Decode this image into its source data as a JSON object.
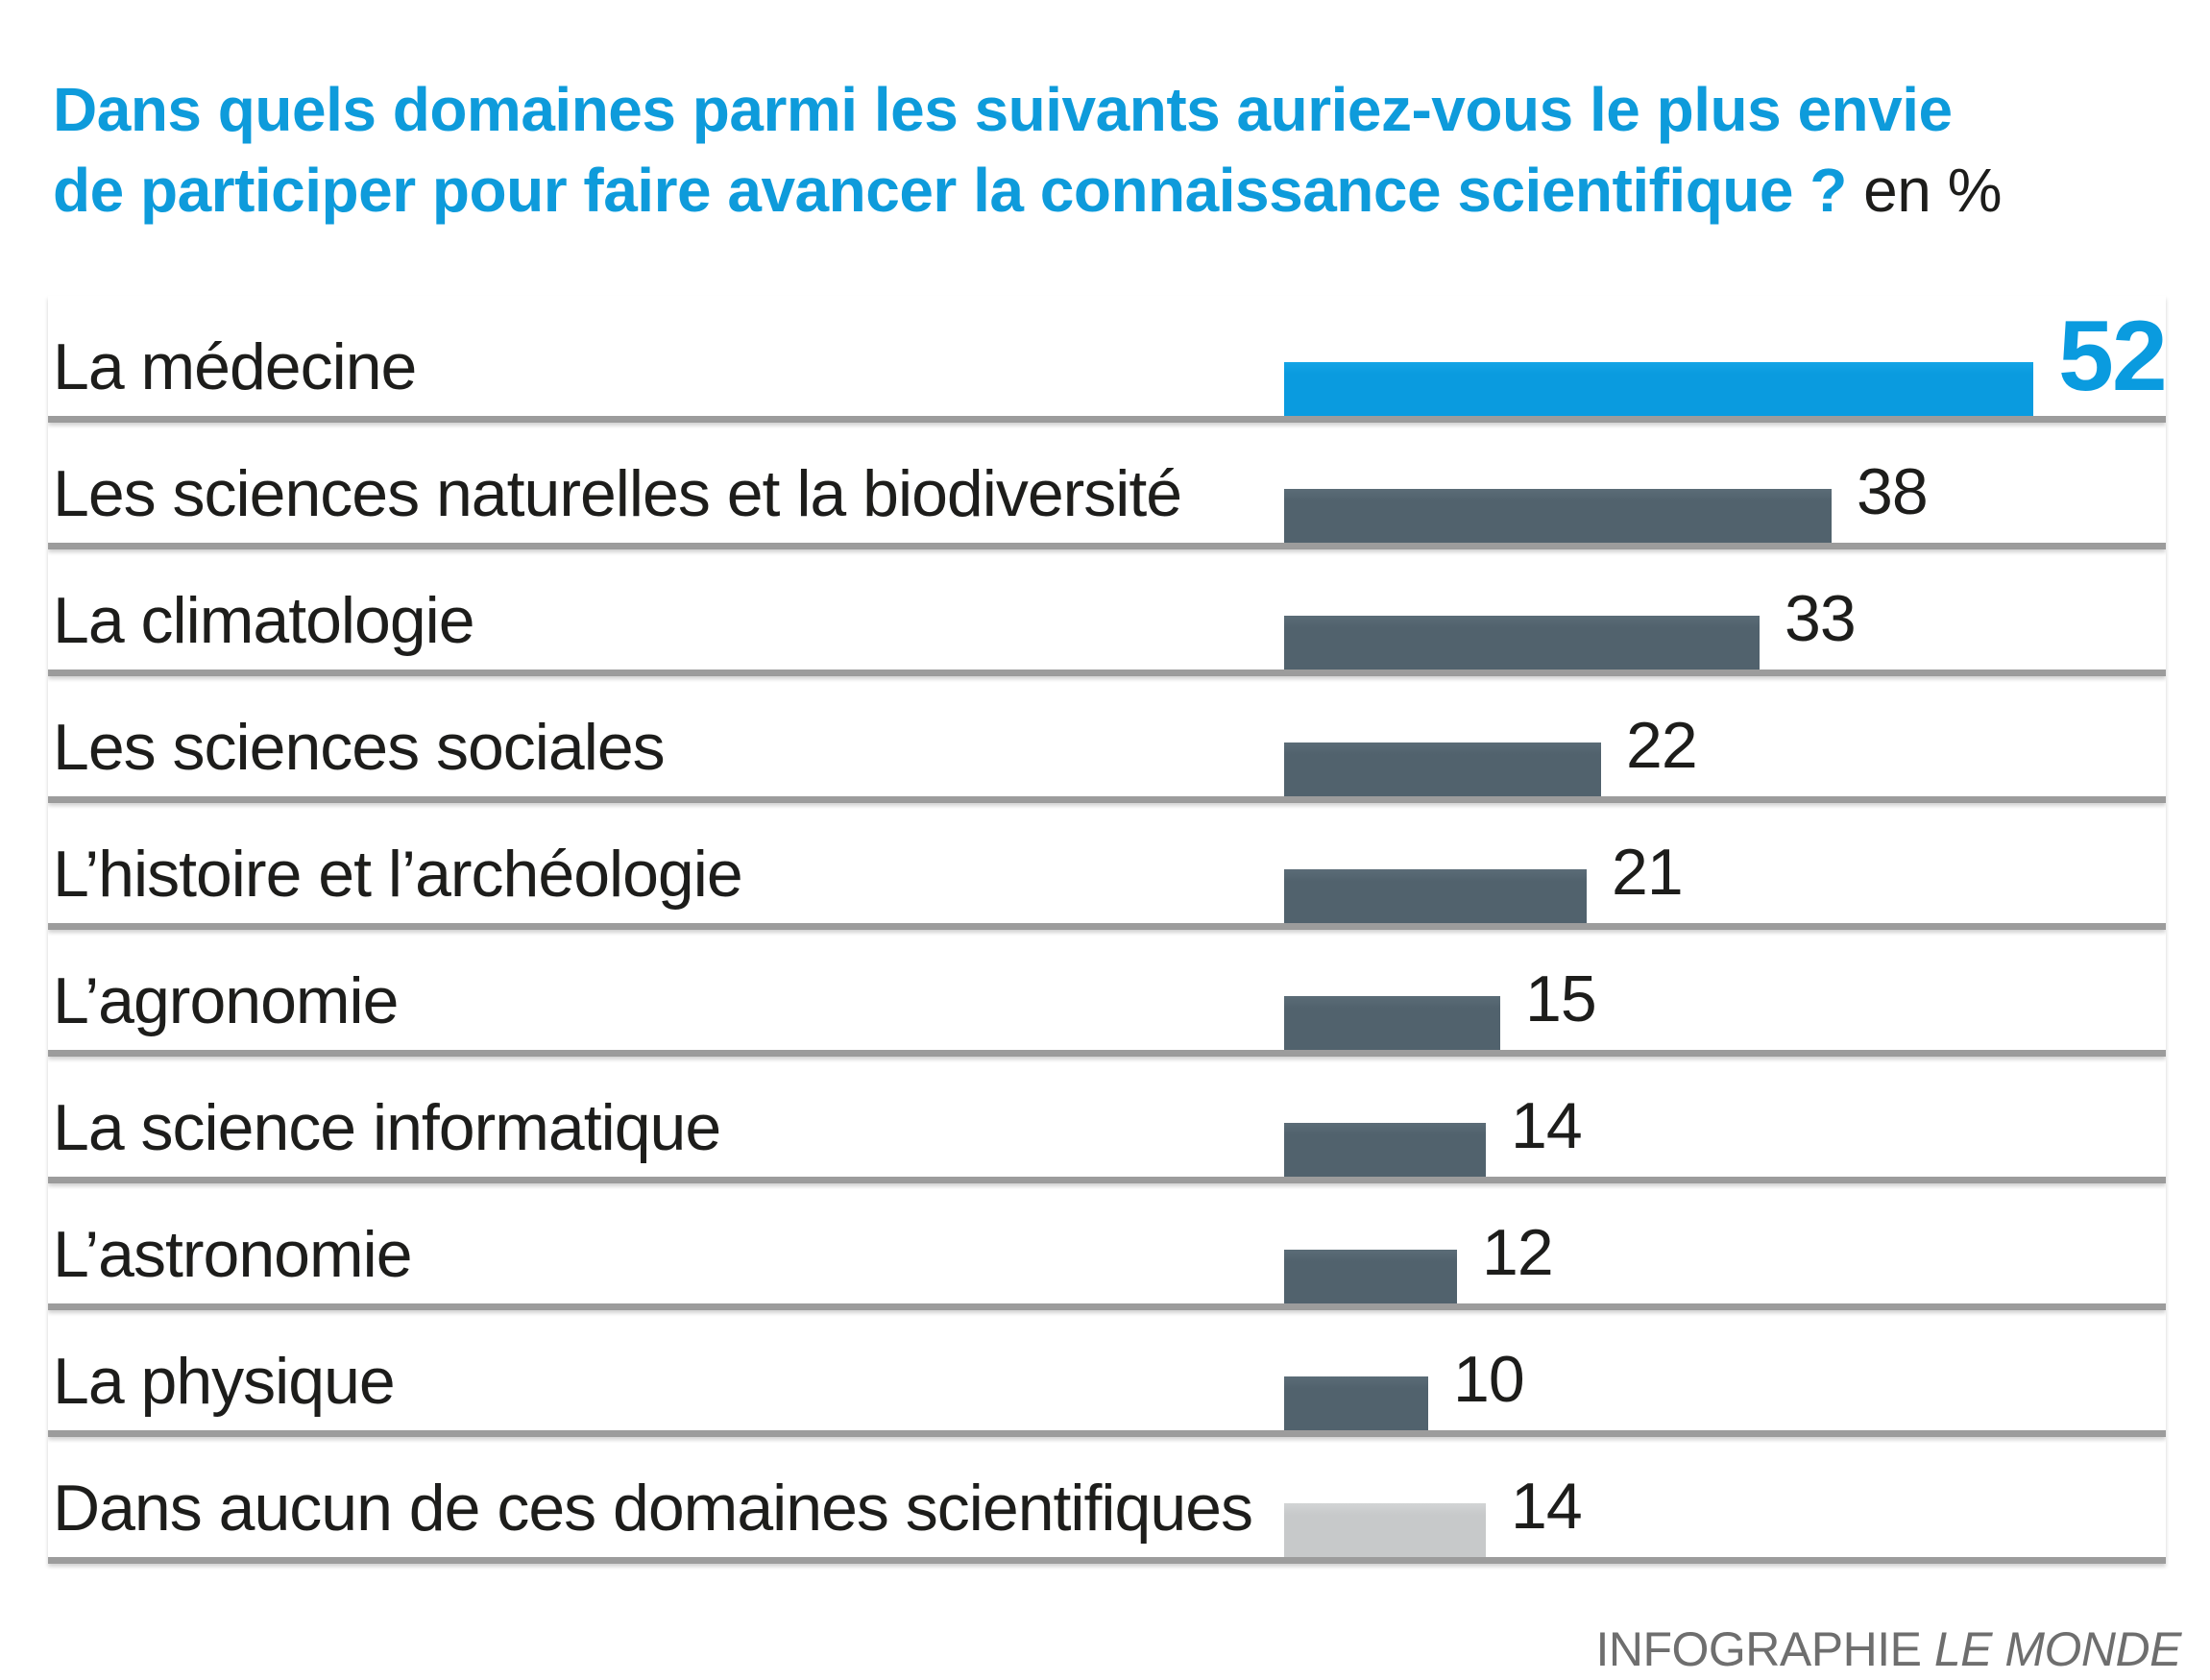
{
  "title": {
    "line1": "Dans quels domaines parmi les suivants auriez-vous le plus envie",
    "line2": "de participer pour faire avancer la connaissance scientifique ?",
    "suffix": "en %"
  },
  "footer": {
    "prefix": "INFOGRAPHIE ",
    "brand": "LE MONDE"
  },
  "colors": {
    "accent_blue": "#0a9bdf",
    "bar_dark": "#51626d",
    "bar_muted": "#c7c9ca",
    "rule_gray": "#9c9c9c",
    "footer_gray": "#6e6e6e",
    "text_black": "#1d1d1b"
  },
  "chart_data": {
    "type": "bar",
    "orientation": "horizontal",
    "unit": "%",
    "title": "Dans quels domaines parmi les suivants auriez-vous le plus envie de participer pour faire avancer la connaissance scientifique ? en %",
    "categories": [
      "La médecine",
      "Les sciences naturelles et la biodiversité",
      "La climatologie",
      "Les sciences sociales",
      "L’histoire et l’archéologie",
      "L’agronomie",
      "La science informatique",
      "L’astronomie",
      "La physique",
      "Dans aucun de ces domaines scientifiques"
    ],
    "values": [
      52,
      38,
      33,
      22,
      21,
      15,
      14,
      12,
      10,
      14
    ],
    "xlim": [
      0,
      52
    ],
    "highlight_index": 0,
    "muted_index": 9,
    "grid": false,
    "legend": "none",
    "source": "INFOGRAPHIE LE MONDE"
  }
}
